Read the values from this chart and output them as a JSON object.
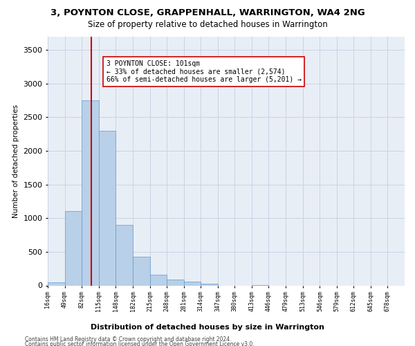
{
  "title": "3, POYNTON CLOSE, GRAPPENHALL, WARRINGTON, WA4 2NG",
  "subtitle": "Size of property relative to detached houses in Warrington",
  "xlabel": "Distribution of detached houses by size in Warrington",
  "ylabel": "Number of detached properties",
  "bar_color": "#b8d0e8",
  "bar_edge_color": "#6699cc",
  "grid_color": "#c8d4e4",
  "background_color": "#e8eef6",
  "annotation_line1": "3 POYNTON CLOSE: 101sqm",
  "annotation_line2": "← 33% of detached houses are smaller (2,574)",
  "annotation_line3": "66% of semi-detached houses are larger (5,201) →",
  "property_line_color": "#cc0000",
  "bin_edges": [
    16,
    49,
    82,
    115,
    148,
    182,
    215,
    248,
    281,
    314,
    347,
    380,
    413,
    446,
    479,
    513,
    546,
    579,
    612,
    645,
    678
  ],
  "bin_labels": [
    "16sqm",
    "49sqm",
    "82sqm",
    "115sqm",
    "148sqm",
    "182sqm",
    "215sqm",
    "248sqm",
    "281sqm",
    "314sqm",
    "347sqm",
    "380sqm",
    "413sqm",
    "446sqm",
    "479sqm",
    "513sqm",
    "546sqm",
    "579sqm",
    "612sqm",
    "645sqm",
    "678sqm"
  ],
  "bar_heights": [
    50,
    1100,
    2750,
    2300,
    900,
    425,
    160,
    90,
    55,
    30,
    0,
    0,
    5,
    0,
    0,
    0,
    0,
    0,
    0,
    0
  ],
  "ylim": [
    0,
    3700
  ],
  "yticks": [
    0,
    500,
    1000,
    1500,
    2000,
    2500,
    3000,
    3500
  ],
  "footer_line1": "Contains HM Land Registry data © Crown copyright and database right 2024.",
  "footer_line2": "Contains public sector information licensed under the Open Government Licence v3.0."
}
